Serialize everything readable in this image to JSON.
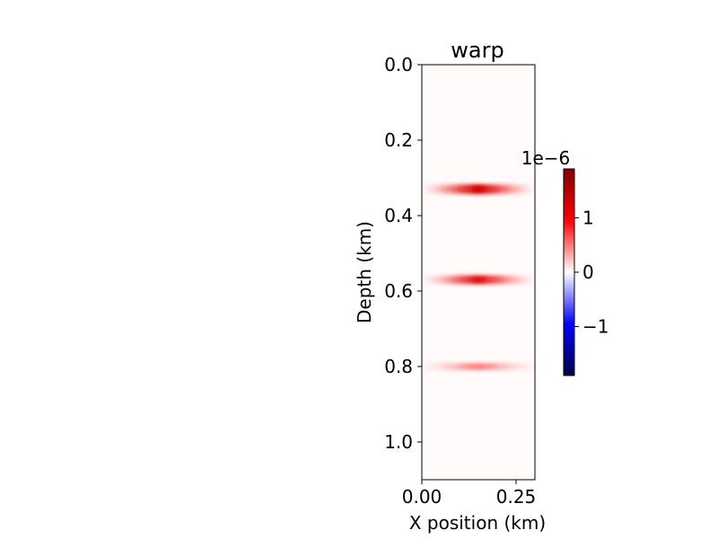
{
  "chart_data": {
    "type": "heatmap",
    "title": "warp",
    "xlabel": "X position (km)",
    "ylabel": "Depth (km)",
    "xlim": [
      0.0,
      0.3
    ],
    "ylim": [
      1.1,
      0.0
    ],
    "xticks": [
      {
        "value": 0.0,
        "label": "0.00"
      },
      {
        "value": 0.25,
        "label": "0.25"
      }
    ],
    "yticks": [
      {
        "value": 0.0,
        "label": "0.0"
      },
      {
        "value": 0.2,
        "label": "0.2"
      },
      {
        "value": 0.4,
        "label": "0.4"
      },
      {
        "value": 0.6,
        "label": "0.6"
      },
      {
        "value": 0.8,
        "label": "0.8"
      },
      {
        "value": 1.0,
        "label": "1.0"
      }
    ],
    "colormap": "seismic",
    "colors": {
      "low": "#00004c",
      "mid": "#ffffff",
      "high": "#800000"
    },
    "colorbar": {
      "range": [
        -1.9e-06,
        1.9e-06
      ],
      "offset_label": "1e−6",
      "ticks": [
        {
          "value": 1e-06,
          "label": "1"
        },
        {
          "value": 0,
          "label": "0"
        },
        {
          "value": -1e-06,
          "label": "−1"
        }
      ]
    },
    "features": [
      {
        "depth": 0.33,
        "x_start": 0.0,
        "x_end": 0.3,
        "x_peak": 0.15,
        "amplitude": 1.5e-06,
        "thickness": 0.013
      },
      {
        "depth": 0.57,
        "x_start": 0.0,
        "x_end": 0.3,
        "x_peak": 0.15,
        "amplitude": 1.2e-06,
        "thickness": 0.012
      },
      {
        "depth": 0.8,
        "x_start": 0.0,
        "x_end": 0.3,
        "x_peak": 0.15,
        "amplitude": 2.5e-07,
        "thickness": 0.01
      }
    ]
  }
}
